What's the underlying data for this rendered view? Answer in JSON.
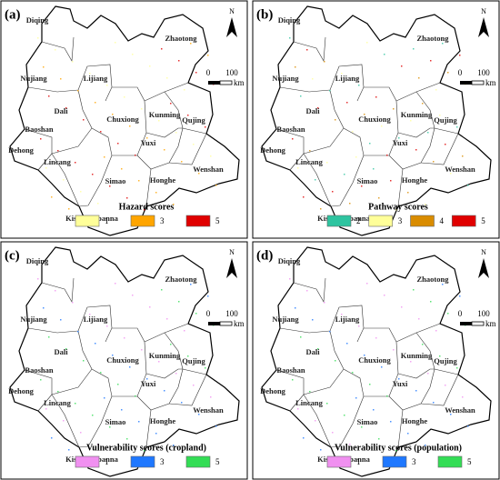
{
  "regions": [
    "Diqing",
    "Zhaotong",
    "Nujiang",
    "Lijiang",
    "Dali",
    "Chuxiong",
    "Kunming",
    "Qujing",
    "Baoshan",
    "Dehong",
    "Lincang",
    "Yuxi",
    "Simao",
    "Honghe",
    "Wenshan",
    "Kishuangbanna"
  ],
  "north": "N",
  "scale": {
    "labels": [
      "0",
      "100"
    ],
    "unit": "km"
  },
  "panels": [
    {
      "label": "(a)",
      "legend_title": "Hazard scores",
      "legend": [
        {
          "label": "1",
          "color": "#ffff99"
        },
        {
          "label": "3",
          "color": "#ffa500"
        },
        {
          "label": "5",
          "color": "#e00000"
        }
      ]
    },
    {
      "label": "(b)",
      "legend_title": "Pathway scores",
      "legend": [
        {
          "label": "2",
          "color": "#2ec4a0"
        },
        {
          "label": "3",
          "color": "#ffff99"
        },
        {
          "label": "4",
          "color": "#d98c00"
        },
        {
          "label": "5",
          "color": "#e00000"
        }
      ]
    },
    {
      "label": "(c)",
      "legend_title": "Vulnerability scores (cropland)",
      "legend": [
        {
          "label": "1",
          "color": "#f090f0"
        },
        {
          "label": "3",
          "color": "#1f78ff"
        },
        {
          "label": "5",
          "color": "#33dd55"
        }
      ]
    },
    {
      "label": "(d)",
      "legend_title": "Vulnerability scores (population)",
      "legend": [
        {
          "label": "1",
          "color": "#f090f0"
        },
        {
          "label": "3",
          "color": "#1f78ff"
        },
        {
          "label": "5",
          "color": "#33dd55"
        }
      ]
    }
  ]
}
